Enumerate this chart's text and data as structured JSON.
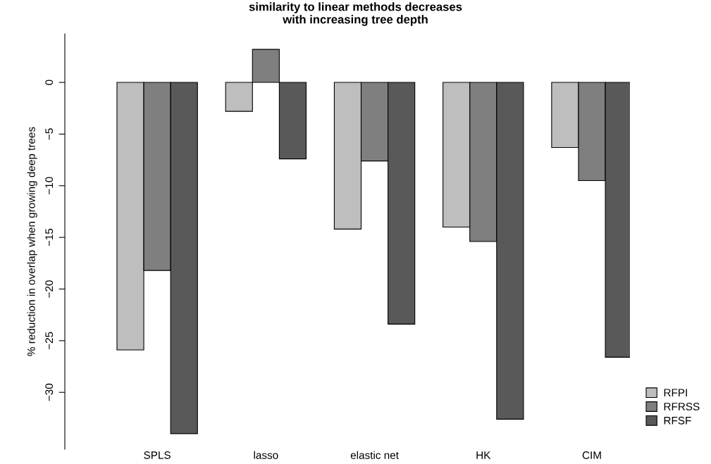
{
  "chart_data": {
    "type": "bar",
    "title": "similarity to linear methods decreases\nwith increasing tree depth",
    "ylabel": "% reduction in overlap when growing deep trees",
    "categories": [
      "SPLS",
      "lasso",
      "elastic net",
      "HK",
      "CIM"
    ],
    "series": [
      {
        "name": "RFPI",
        "color": "#bebebe",
        "values": [
          -25.9,
          -2.8,
          -14.2,
          -14.0,
          -6.3
        ]
      },
      {
        "name": "RFRSS",
        "color": "#7f7f7f",
        "values": [
          -18.2,
          3.2,
          -7.6,
          -15.4,
          -9.5
        ]
      },
      {
        "name": "RFSF",
        "color": "#595959",
        "values": [
          -34.0,
          -7.4,
          -23.4,
          -32.6,
          -26.6
        ]
      }
    ],
    "ylim": [
      -35.5,
      4.7
    ],
    "yticks": [
      0,
      -5,
      -10,
      -15,
      -20,
      -25,
      -30
    ],
    "grid": false,
    "legend": "bottom right"
  }
}
